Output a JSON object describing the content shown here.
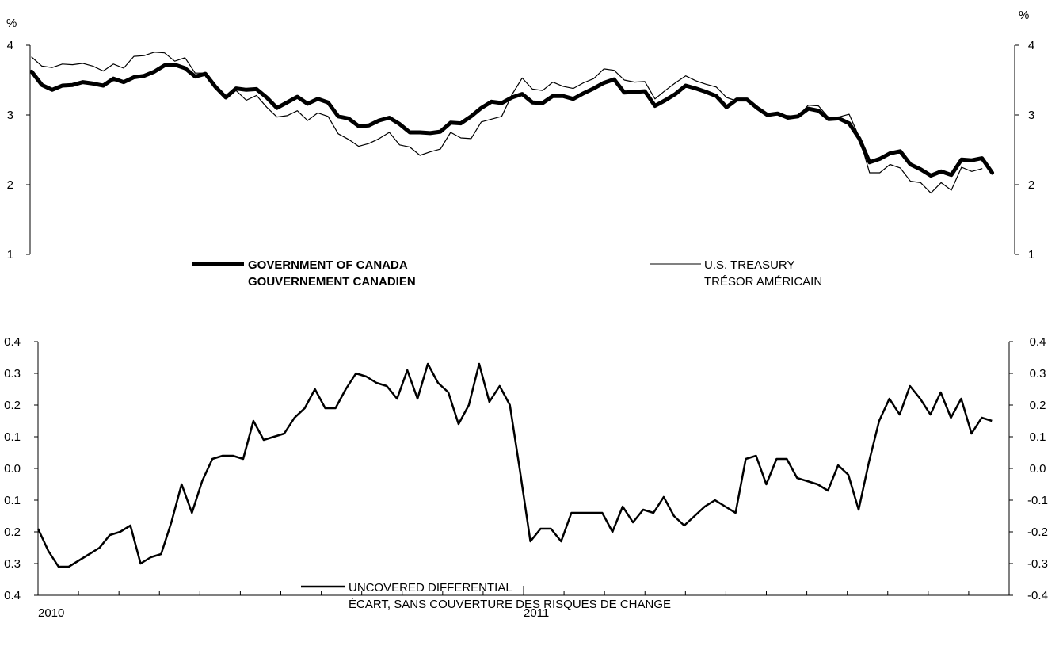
{
  "chart_data": [
    {
      "type": "line",
      "ylabel_left": "%",
      "ylabel_right": "%",
      "ylim": [
        1,
        4
      ],
      "yticks": [
        "1",
        "2",
        "3",
        "4"
      ],
      "x_start": "2010-01",
      "series": [
        {
          "name": "GOVERNMENT OF CANADA",
          "name_fr": "GOUVERNEMENT CANADIEN",
          "style": "thick",
          "color": "#000000",
          "values": [
            3.62,
            3.43,
            3.36,
            3.42,
            3.43,
            3.47,
            3.45,
            3.42,
            3.52,
            3.47,
            3.54,
            3.56,
            3.62,
            3.71,
            3.72,
            3.67,
            3.55,
            3.59,
            3.4,
            3.25,
            3.38,
            3.36,
            3.37,
            3.25,
            3.1,
            3.18,
            3.26,
            3.16,
            3.23,
            3.18,
            2.98,
            2.95,
            2.84,
            2.85,
            2.92,
            2.96,
            2.87,
            2.75,
            2.75,
            2.74,
            2.76,
            2.89,
            2.88,
            2.98,
            3.1,
            3.19,
            3.17,
            3.25,
            3.3,
            3.18,
            3.17,
            3.27,
            3.27,
            3.23,
            3.31,
            3.38,
            3.46,
            3.51,
            3.32,
            3.33,
            3.34,
            3.13,
            3.21,
            3.3,
            3.42,
            3.38,
            3.33,
            3.27,
            3.11,
            3.22,
            3.22,
            3.1,
            3.0,
            3.02,
            2.96,
            2.98,
            3.09,
            3.06,
            2.94,
            2.95,
            2.88,
            2.66,
            2.32,
            2.37,
            2.45,
            2.48,
            2.29,
            2.22,
            2.13,
            2.19,
            2.14,
            2.36,
            2.35,
            2.38,
            2.17
          ]
        },
        {
          "name": "U.S. TREASURY",
          "name_fr": "TRÉSOR AMÉRICAIN",
          "style": "thin",
          "color": "#000000",
          "values": [
            3.83,
            3.7,
            3.68,
            3.73,
            3.72,
            3.74,
            3.7,
            3.63,
            3.73,
            3.67,
            3.84,
            3.85,
            3.9,
            3.89,
            3.77,
            3.82,
            3.6,
            3.6,
            3.4,
            3.27,
            3.35,
            3.21,
            3.28,
            3.11,
            2.97,
            2.99,
            3.06,
            2.92,
            3.03,
            2.98,
            2.73,
            2.65,
            2.55,
            2.59,
            2.66,
            2.75,
            2.57,
            2.54,
            2.42,
            2.47,
            2.51,
            2.75,
            2.67,
            2.66,
            2.9,
            2.94,
            2.98,
            3.29,
            3.53,
            3.37,
            3.35,
            3.47,
            3.41,
            3.38,
            3.46,
            3.52,
            3.66,
            3.64,
            3.5,
            3.47,
            3.48,
            3.23,
            3.35,
            3.46,
            3.56,
            3.49,
            3.44,
            3.4,
            3.25,
            3.2,
            3.2,
            3.11,
            3.0,
            3.0,
            2.99,
            2.98,
            3.14,
            3.13,
            2.96,
            2.97,
            3.01,
            2.68,
            2.17,
            2.17,
            2.29,
            2.24,
            2.05,
            2.03,
            1.88,
            2.03,
            1.92,
            2.25,
            2.19,
            2.23
          ]
        }
      ]
    },
    {
      "type": "line",
      "ylim": [
        -0.4,
        0.4
      ],
      "yticks_left": [
        "0.4",
        "0.3",
        "0.2",
        "0.1",
        "0.0",
        "0.1",
        "0.2",
        "0.3",
        "0.4"
      ],
      "yticks_right": [
        "0.4",
        "0.3",
        "0.2",
        "0.1",
        "0.0",
        "-0.1",
        "-0.2",
        "-0.3",
        "-0.4"
      ],
      "x_labels": [
        "2010",
        "2011"
      ],
      "series": [
        {
          "name": "UNCOVERED DIFFERENTIAL",
          "name_fr": "ÉCART, SANS COUVERTURE DES RISQUES DE CHANGE",
          "style": "medium",
          "color": "#000000",
          "values": [
            -0.19,
            -0.26,
            -0.31,
            -0.31,
            -0.29,
            -0.27,
            -0.25,
            -0.21,
            -0.2,
            -0.18,
            -0.3,
            -0.28,
            -0.27,
            -0.17,
            -0.05,
            -0.14,
            -0.04,
            0.03,
            0.04,
            0.04,
            0.03,
            0.15,
            0.09,
            0.1,
            0.11,
            0.16,
            0.19,
            0.25,
            0.19,
            0.19,
            0.25,
            0.3,
            0.29,
            0.27,
            0.26,
            0.22,
            0.31,
            0.22,
            0.33,
            0.27,
            0.24,
            0.14,
            0.2,
            0.33,
            0.21,
            0.26,
            0.2,
            -0.01,
            -0.23,
            -0.19,
            -0.19,
            -0.23,
            -0.14,
            -0.14,
            -0.14,
            -0.14,
            -0.2,
            -0.12,
            -0.17,
            -0.13,
            -0.14,
            -0.09,
            -0.15,
            -0.18,
            -0.15,
            -0.12,
            -0.1,
            -0.12,
            -0.14,
            0.03,
            0.04,
            -0.05,
            0.03,
            0.03,
            -0.03,
            -0.04,
            -0.05,
            -0.07,
            0.01,
            -0.02,
            -0.13,
            0.02,
            0.15,
            0.22,
            0.17,
            0.26,
            0.22,
            0.17,
            0.24,
            0.16,
            0.22,
            0.11,
            0.16,
            0.15
          ]
        }
      ]
    }
  ]
}
